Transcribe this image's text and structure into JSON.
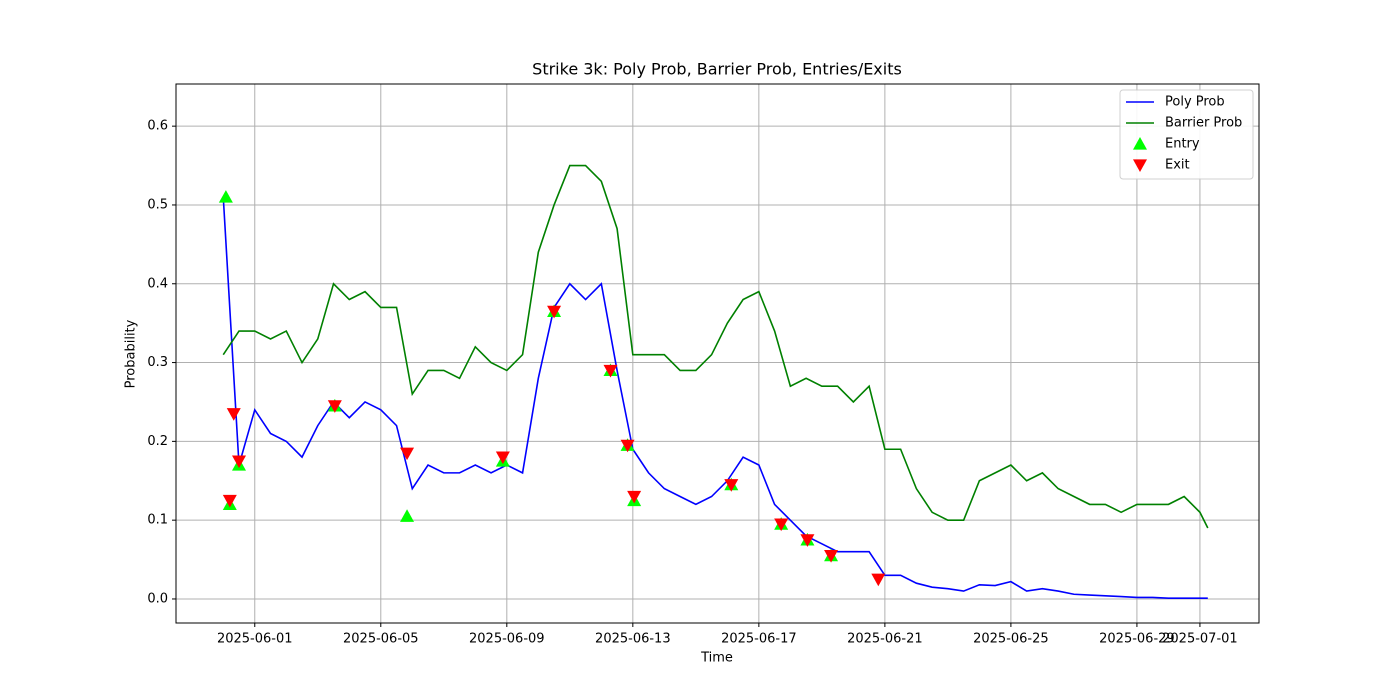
{
  "chart_data": {
    "type": "line",
    "title": "Strike 3k: Poly Prob, Barrier Prob, Entries/Exits",
    "x_label": "Time",
    "y_label": "Probability",
    "grid": true,
    "legend": "upper right",
    "xlim": [
      "2025-05-29 12:00",
      "2025-07-02 21:00"
    ],
    "ylim": [
      -0.0305,
      0.6535
    ],
    "xticks": [
      "2025-06-01",
      "2025-06-05",
      "2025-06-09",
      "2025-06-13",
      "2025-06-17",
      "2025-06-21",
      "2025-06-25",
      "2025-06-29",
      "2025-07-01"
    ],
    "yticks": [
      {
        "value": 0,
        "label": "0.0"
      },
      0.1,
      0.2,
      0.3,
      0.4,
      0.5,
      0.6
    ],
    "x": [
      "2025-05-31 00:00",
      "2025-05-31 12:00",
      "2025-06-01 00:00",
      "2025-06-01 12:00",
      "2025-06-02 00:00",
      "2025-06-02 12:00",
      "2025-06-03 00:00",
      "2025-06-03 12:00",
      "2025-06-04 00:00",
      "2025-06-04 12:00",
      "2025-06-05 00:00",
      "2025-06-05 12:00",
      "2025-06-06 00:00",
      "2025-06-06 12:00",
      "2025-06-07 00:00",
      "2025-06-07 12:00",
      "2025-06-08 00:00",
      "2025-06-08 12:00",
      "2025-06-09 00:00",
      "2025-06-09 12:00",
      "2025-06-10 00:00",
      "2025-06-10 12:00",
      "2025-06-11 00:00",
      "2025-06-11 12:00",
      "2025-06-12 00:00",
      "2025-06-12 12:00",
      "2025-06-13 00:00",
      "2025-06-13 12:00",
      "2025-06-14 00:00",
      "2025-06-14 12:00",
      "2025-06-15 00:00",
      "2025-06-15 12:00",
      "2025-06-16 00:00",
      "2025-06-16 12:00",
      "2025-06-17 00:00",
      "2025-06-17 12:00",
      "2025-06-18 00:00",
      "2025-06-18 12:00",
      "2025-06-19 00:00",
      "2025-06-19 12:00",
      "2025-06-20 00:00",
      "2025-06-20 12:00",
      "2025-06-21 00:00",
      "2025-06-21 12:00",
      "2025-06-22 00:00",
      "2025-06-22 12:00",
      "2025-06-23 00:00",
      "2025-06-23 12:00",
      "2025-06-24 00:00",
      "2025-06-24 12:00",
      "2025-06-25 00:00",
      "2025-06-25 12:00",
      "2025-06-26 00:00",
      "2025-06-26 12:00",
      "2025-06-27 00:00",
      "2025-06-27 12:00",
      "2025-06-28 00:00",
      "2025-06-28 12:00",
      "2025-06-29 00:00",
      "2025-06-29 12:00",
      "2025-06-30 00:00",
      "2025-06-30 12:00",
      "2025-07-01 00:00",
      "2025-07-01 06:00"
    ],
    "series": [
      {
        "name": "Poly Prob",
        "color": "#0000ff",
        "values": [
          0.51,
          0.17,
          0.24,
          0.21,
          0.2,
          0.18,
          0.22,
          0.25,
          0.23,
          0.25,
          0.24,
          0.22,
          0.14,
          0.17,
          0.16,
          0.16,
          0.17,
          0.16,
          0.17,
          0.16,
          0.28,
          0.37,
          0.4,
          0.38,
          0.4,
          0.29,
          0.19,
          0.16,
          0.14,
          0.13,
          0.12,
          0.13,
          0.15,
          0.18,
          0.17,
          0.12,
          0.1,
          0.08,
          0.07,
          0.06,
          0.06,
          0.06,
          0.03,
          0.03,
          0.02,
          0.015,
          0.013,
          0.01,
          0.018,
          0.017,
          0.022,
          0.01,
          0.013,
          0.01,
          0.006,
          0.005,
          0.004,
          0.003,
          0.002,
          0.002,
          0.001,
          0.001,
          0.001,
          0.001
        ]
      },
      {
        "name": "Barrier Prob",
        "color": "#008000",
        "values": [
          0.31,
          0.34,
          0.34,
          0.33,
          0.34,
          0.3,
          0.33,
          0.4,
          0.38,
          0.39,
          0.37,
          0.37,
          0.26,
          0.29,
          0.29,
          0.28,
          0.32,
          0.3,
          0.29,
          0.31,
          0.44,
          0.5,
          0.55,
          0.55,
          0.53,
          0.47,
          0.31,
          0.31,
          0.31,
          0.29,
          0.29,
          0.31,
          0.35,
          0.38,
          0.39,
          0.34,
          0.27,
          0.28,
          0.27,
          0.27,
          0.25,
          0.27,
          0.19,
          0.19,
          0.14,
          0.11,
          0.1,
          0.1,
          0.15,
          0.16,
          0.17,
          0.15,
          0.16,
          0.14,
          0.13,
          0.12,
          0.12,
          0.11,
          0.12,
          0.12,
          0.12,
          0.13,
          0.11,
          0.09
        ]
      },
      {
        "name": "Entry",
        "color": "#00ff00",
        "marker": "triangle-up",
        "x": [
          "2025-05-31 02:00",
          "2025-05-31 05:00",
          "2025-05-31 12:00",
          "2025-06-03 13:00",
          "2025-06-05 20:00",
          "2025-06-08 21:00",
          "2025-06-10 12:00",
          "2025-06-12 07:00",
          "2025-06-12 20:00",
          "2025-06-13 01:00",
          "2025-06-16 03:00",
          "2025-06-17 17:00",
          "2025-06-18 13:00",
          "2025-06-19 07:00"
        ],
        "values": [
          0.51,
          0.12,
          0.17,
          0.245,
          0.105,
          0.175,
          0.365,
          0.29,
          0.195,
          0.125,
          0.145,
          0.095,
          0.075,
          0.055
        ]
      },
      {
        "name": "Exit",
        "color": "#ff0000",
        "marker": "triangle-down",
        "x": [
          "2025-05-31 05:00",
          "2025-05-31 08:00",
          "2025-05-31 12:00",
          "2025-06-03 13:00",
          "2025-06-05 20:00",
          "2025-06-08 21:00",
          "2025-06-10 12:00",
          "2025-06-12 07:00",
          "2025-06-12 20:00",
          "2025-06-13 01:00",
          "2025-06-16 03:00",
          "2025-06-17 17:00",
          "2025-06-18 13:00",
          "2025-06-19 07:00",
          "2025-06-20 19:00"
        ],
        "values": [
          0.125,
          0.235,
          0.175,
          0.245,
          0.185,
          0.18,
          0.365,
          0.29,
          0.195,
          0.13,
          0.145,
          0.095,
          0.075,
          0.055,
          0.025
        ]
      }
    ]
  }
}
